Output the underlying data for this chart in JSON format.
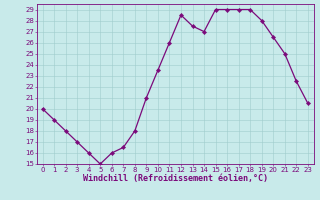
{
  "x": [
    0,
    1,
    2,
    3,
    4,
    5,
    6,
    7,
    8,
    9,
    10,
    11,
    12,
    13,
    14,
    15,
    16,
    17,
    18,
    19,
    20,
    21,
    22,
    23
  ],
  "y": [
    20,
    19,
    18,
    17,
    16,
    15,
    16,
    16.5,
    18,
    21,
    23.5,
    26,
    28.5,
    27.5,
    27,
    29,
    29,
    29,
    29,
    28,
    26.5,
    25,
    22.5,
    20.5
  ],
  "line_color": "#7b0a7b",
  "marker": "D",
  "marker_size": 2.2,
  "linewidth": 0.9,
  "bg_color": "#c8eaea",
  "grid_color": "#a0cccc",
  "xlabel": "Windchill (Refroidissement éolien,°C)",
  "xlabel_fontsize": 6.0,
  "xlabel_color": "#7b0a7b",
  "xlim": [
    -0.5,
    23.5
  ],
  "ylim": [
    15,
    29.5
  ],
  "yticks": [
    15,
    16,
    17,
    18,
    19,
    20,
    21,
    22,
    23,
    24,
    25,
    26,
    27,
    28,
    29
  ],
  "xticks": [
    0,
    1,
    2,
    3,
    4,
    5,
    6,
    7,
    8,
    9,
    10,
    11,
    12,
    13,
    14,
    15,
    16,
    17,
    18,
    19,
    20,
    21,
    22,
    23
  ],
  "tick_color": "#7b0a7b",
  "tick_fontsize": 5.0,
  "spine_color": "#7b0a7b"
}
